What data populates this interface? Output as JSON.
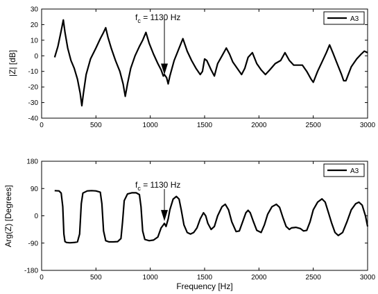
{
  "chart_data": [
    {
      "type": "line",
      "ylabel": "|Z| [dB]",
      "xlabel": "",
      "xlim": [
        0,
        3000
      ],
      "ylim": [
        -40,
        30
      ],
      "xticks": [
        0,
        500,
        1000,
        1500,
        2000,
        2500,
        3000
      ],
      "yticks": [
        -40,
        -30,
        -20,
        -10,
        0,
        10,
        20,
        30
      ],
      "grid": false,
      "legend_position": "top-right",
      "annotation": {
        "text_main": "f",
        "text_sub": "c",
        "text_rest": " = 1130 Hz",
        "x": 1130,
        "y": -13,
        "arrow": "down"
      },
      "series": [
        {
          "name": "A3",
          "color": "#000000",
          "points": [
            [
              120,
              -1
            ],
            [
              150,
              6
            ],
            [
              180,
              16
            ],
            [
              200,
              23
            ],
            [
              215,
              15
            ],
            [
              240,
              5
            ],
            [
              270,
              -3
            ],
            [
              300,
              -8
            ],
            [
              330,
              -15
            ],
            [
              355,
              -24
            ],
            [
              370,
              -32
            ],
            [
              385,
              -24
            ],
            [
              410,
              -12
            ],
            [
              450,
              -2
            ],
            [
              500,
              5
            ],
            [
              540,
              11
            ],
            [
              570,
              15
            ],
            [
              590,
              18
            ],
            [
              610,
              12
            ],
            [
              640,
              5
            ],
            [
              680,
              -3
            ],
            [
              720,
              -10
            ],
            [
              750,
              -18
            ],
            [
              770,
              -26
            ],
            [
              790,
              -18
            ],
            [
              820,
              -8
            ],
            [
              860,
              0
            ],
            [
              900,
              6
            ],
            [
              930,
              10
            ],
            [
              960,
              15
            ],
            [
              990,
              8
            ],
            [
              1030,
              1
            ],
            [
              1070,
              -5
            ],
            [
              1100,
              -9
            ],
            [
              1120,
              -13
            ],
            [
              1130,
              -12
            ],
            [
              1150,
              -14
            ],
            [
              1165,
              -18
            ],
            [
              1180,
              -13
            ],
            [
              1220,
              -3
            ],
            [
              1260,
              4
            ],
            [
              1300,
              11
            ],
            [
              1340,
              3
            ],
            [
              1380,
              -3
            ],
            [
              1420,
              -8
            ],
            [
              1460,
              -12
            ],
            [
              1480,
              -10
            ],
            [
              1500,
              -2
            ],
            [
              1520,
              -3
            ],
            [
              1560,
              -9
            ],
            [
              1590,
              -13
            ],
            [
              1620,
              -5
            ],
            [
              1660,
              0
            ],
            [
              1700,
              5
            ],
            [
              1730,
              1
            ],
            [
              1760,
              -4
            ],
            [
              1800,
              -8
            ],
            [
              1840,
              -12
            ],
            [
              1870,
              -8
            ],
            [
              1900,
              -1
            ],
            [
              1940,
              2
            ],
            [
              1980,
              -5
            ],
            [
              2020,
              -9
            ],
            [
              2060,
              -12
            ],
            [
              2100,
              -9
            ],
            [
              2150,
              -5
            ],
            [
              2200,
              -3
            ],
            [
              2240,
              2
            ],
            [
              2280,
              -3
            ],
            [
              2320,
              -6
            ],
            [
              2360,
              -6
            ],
            [
              2400,
              -6
            ],
            [
              2440,
              -10
            ],
            [
              2480,
              -15
            ],
            [
              2500,
              -17
            ],
            [
              2540,
              -10
            ],
            [
              2580,
              -4
            ],
            [
              2620,
              2
            ],
            [
              2650,
              7
            ],
            [
              2680,
              2
            ],
            [
              2720,
              -5
            ],
            [
              2760,
              -12
            ],
            [
              2780,
              -16
            ],
            [
              2800,
              -16
            ],
            [
              2850,
              -7
            ],
            [
              2900,
              -2
            ],
            [
              2940,
              1
            ],
            [
              2970,
              3
            ],
            [
              3000,
              2
            ]
          ]
        }
      ]
    },
    {
      "type": "line",
      "ylabel": "Arg(Z) [Degrees]",
      "xlabel": "Frequency [Hz]",
      "xlim": [
        0,
        3000
      ],
      "ylim": [
        -180,
        180
      ],
      "xticks": [
        0,
        500,
        1000,
        1500,
        2000,
        2500,
        3000
      ],
      "yticks": [
        -180,
        -90,
        0,
        90,
        180
      ],
      "grid": false,
      "legend_position": "top-right",
      "annotation": {
        "text_main": "f",
        "text_sub": "c",
        "text_rest": " = 1130 Hz",
        "x": 1130,
        "y": -22,
        "arrow": "down"
      },
      "series": [
        {
          "name": "A3",
          "color": "#000000",
          "points": [
            [
              120,
              83
            ],
            [
              160,
              82
            ],
            [
              180,
              75
            ],
            [
              195,
              30
            ],
            [
              205,
              -60
            ],
            [
              215,
              -85
            ],
            [
              230,
              -88
            ],
            [
              260,
              -89
            ],
            [
              300,
              -88
            ],
            [
              330,
              -86
            ],
            [
              350,
              -60
            ],
            [
              365,
              40
            ],
            [
              380,
              75
            ],
            [
              420,
              82
            ],
            [
              460,
              83
            ],
            [
              500,
              82
            ],
            [
              540,
              78
            ],
            [
              555,
              40
            ],
            [
              570,
              -50
            ],
            [
              590,
              -82
            ],
            [
              620,
              -86
            ],
            [
              660,
              -86
            ],
            [
              700,
              -85
            ],
            [
              730,
              -75
            ],
            [
              745,
              -20
            ],
            [
              760,
              50
            ],
            [
              790,
              72
            ],
            [
              830,
              76
            ],
            [
              870,
              76
            ],
            [
              900,
              70
            ],
            [
              915,
              30
            ],
            [
              930,
              -50
            ],
            [
              950,
              -78
            ],
            [
              990,
              -82
            ],
            [
              1030,
              -80
            ],
            [
              1070,
              -70
            ],
            [
              1100,
              -40
            ],
            [
              1120,
              -30
            ],
            [
              1130,
              -25
            ],
            [
              1145,
              -35
            ],
            [
              1165,
              -10
            ],
            [
              1180,
              20
            ],
            [
              1210,
              55
            ],
            [
              1240,
              64
            ],
            [
              1265,
              55
            ],
            [
              1285,
              20
            ],
            [
              1310,
              -30
            ],
            [
              1340,
              -55
            ],
            [
              1370,
              -60
            ],
            [
              1400,
              -55
            ],
            [
              1430,
              -40
            ],
            [
              1460,
              -10
            ],
            [
              1490,
              10
            ],
            [
              1510,
              0
            ],
            [
              1530,
              -25
            ],
            [
              1560,
              -45
            ],
            [
              1590,
              -35
            ],
            [
              1620,
              0
            ],
            [
              1660,
              30
            ],
            [
              1690,
              38
            ],
            [
              1720,
              20
            ],
            [
              1750,
              -20
            ],
            [
              1790,
              -52
            ],
            [
              1820,
              -50
            ],
            [
              1850,
              -20
            ],
            [
              1880,
              10
            ],
            [
              1900,
              18
            ],
            [
              1920,
              10
            ],
            [
              1950,
              -20
            ],
            [
              1980,
              -48
            ],
            [
              2020,
              -55
            ],
            [
              2050,
              -30
            ],
            [
              2080,
              5
            ],
            [
              2120,
              30
            ],
            [
              2160,
              38
            ],
            [
              2190,
              28
            ],
            [
              2220,
              -5
            ],
            [
              2250,
              -35
            ],
            [
              2280,
              -45
            ],
            [
              2300,
              -40
            ],
            [
              2340,
              -38
            ],
            [
              2380,
              -42
            ],
            [
              2410,
              -50
            ],
            [
              2440,
              -48
            ],
            [
              2470,
              -20
            ],
            [
              2500,
              20
            ],
            [
              2540,
              45
            ],
            [
              2580,
              56
            ],
            [
              2610,
              45
            ],
            [
              2640,
              10
            ],
            [
              2670,
              -25
            ],
            [
              2700,
              -55
            ],
            [
              2730,
              -65
            ],
            [
              2770,
              -55
            ],
            [
              2810,
              -20
            ],
            [
              2850,
              20
            ],
            [
              2890,
              40
            ],
            [
              2920,
              45
            ],
            [
              2950,
              35
            ],
            [
              2980,
              0
            ],
            [
              3000,
              -35
            ]
          ]
        }
      ]
    }
  ]
}
